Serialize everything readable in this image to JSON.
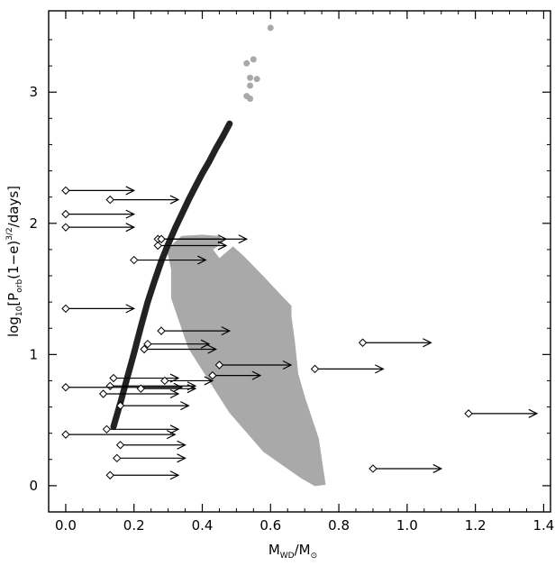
{
  "chart_data": {
    "type": "scatter",
    "xlabel_main": "M",
    "xlabel_sub1": "WD",
    "xlabel_sep": "/M",
    "xlabel_sun": "⊙",
    "ylabel_main": "log",
    "ylabel_base": "10",
    "ylabel_open": "[P",
    "ylabel_sub": "orb",
    "ylabel_mid": "(1−e)",
    "ylabel_sup": "3/2",
    "ylabel_end": "/days]",
    "xlim": [
      -0.05,
      1.42
    ],
    "ylim": [
      -0.2,
      3.62
    ],
    "xticks": [
      "0.0",
      "0.2",
      "0.4",
      "0.6",
      "0.8",
      "1.0",
      "1.2",
      "1.4"
    ],
    "xtick_values": [
      0,
      0.2,
      0.4,
      0.6,
      0.8,
      1.0,
      1.2,
      1.4
    ],
    "yticks": [
      "0",
      "1",
      "2",
      "3"
    ],
    "ytick_values": [
      0,
      1,
      2,
      3
    ],
    "region_color": "#a9a9a9",
    "curve_color": "#222222",
    "region_polygon": [
      [
        0.31,
        1.83
      ],
      [
        0.34,
        1.9
      ],
      [
        0.4,
        1.91
      ],
      [
        0.45,
        1.9
      ],
      [
        0.46,
        1.86
      ],
      [
        0.43,
        1.8
      ],
      [
        0.45,
        1.73
      ],
      [
        0.49,
        1.82
      ],
      [
        0.52,
        1.75
      ],
      [
        0.58,
        1.59
      ],
      [
        0.63,
        1.45
      ],
      [
        0.66,
        1.37
      ],
      [
        0.66,
        1.29
      ],
      [
        0.67,
        1.1
      ],
      [
        0.68,
        0.85
      ],
      [
        0.7,
        0.67
      ],
      [
        0.74,
        0.36
      ],
      [
        0.76,
        0.01
      ],
      [
        0.73,
        0.0
      ],
      [
        0.69,
        0.06
      ],
      [
        0.58,
        0.26
      ],
      [
        0.48,
        0.56
      ],
      [
        0.36,
        1.05
      ],
      [
        0.31,
        1.43
      ],
      [
        0.31,
        1.65
      ],
      [
        0.3,
        1.77
      ]
    ],
    "relation_curve": {
      "x": [
        0.14,
        0.16,
        0.18,
        0.2,
        0.22,
        0.24,
        0.26,
        0.28,
        0.3,
        0.32,
        0.34,
        0.36,
        0.38,
        0.4,
        0.42,
        0.44,
        0.46,
        0.48
      ],
      "y": [
        0.45,
        0.63,
        0.82,
        1.01,
        1.21,
        1.4,
        1.56,
        1.71,
        1.84,
        1.96,
        2.07,
        2.18,
        2.28,
        2.38,
        2.47,
        2.57,
        2.66,
        2.76
      ]
    },
    "upper_points": {
      "x": [
        0.6,
        0.53,
        0.55,
        0.54,
        0.56,
        0.54,
        0.53,
        0.54
      ],
      "y": [
        3.49,
        3.22,
        3.25,
        3.11,
        3.1,
        3.05,
        2.97,
        2.95
      ]
    },
    "lower_limits": {
      "x": [
        0.0,
        0.13,
        0.0,
        0.0,
        0.27,
        0.27,
        0.28,
        0.2,
        0.0,
        0.28,
        0.24,
        0.23,
        0.45,
        0.87,
        0.73,
        0.43,
        0.14,
        0.29,
        0.13,
        0.0,
        0.22,
        0.11,
        0.16,
        0.12,
        1.18,
        0.0,
        0.16,
        0.15,
        0.9,
        0.13
      ],
      "y": [
        2.25,
        2.18,
        2.07,
        1.97,
        1.88,
        1.83,
        1.88,
        1.72,
        1.35,
        1.18,
        1.08,
        1.04,
        0.92,
        1.09,
        0.89,
        0.84,
        0.82,
        0.8,
        0.76,
        0.75,
        0.74,
        0.7,
        0.61,
        0.43,
        0.55,
        0.39,
        0.31,
        0.21,
        0.13,
        0.08
      ],
      "x_end": [
        0.2,
        0.33,
        0.2,
        0.2,
        0.53,
        0.47,
        0.47,
        0.41,
        0.2,
        0.48,
        0.42,
        0.44,
        0.66,
        1.07,
        0.93,
        0.57,
        0.33,
        0.43,
        0.38,
        0.34,
        0.38,
        0.33,
        0.36,
        0.33,
        1.38,
        0.32,
        0.35,
        0.35,
        1.1,
        0.33
      ]
    }
  }
}
